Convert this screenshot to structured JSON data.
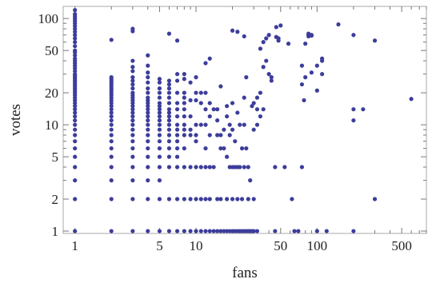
{
  "chart_data": {
    "type": "scatter",
    "xlabel": "fans",
    "ylabel": "votes",
    "xscale": "log",
    "yscale": "log",
    "xlim": [
      0.8,
      800
    ],
    "ylim": [
      0.95,
      130
    ],
    "xticks": [
      {
        "value": 1,
        "label": "1"
      },
      {
        "value": 5,
        "label": "5"
      },
      {
        "value": 10,
        "label": "10"
      },
      {
        "value": 50,
        "label": "50"
      },
      {
        "value": 100,
        "label": "100"
      },
      {
        "value": 500,
        "label": "500"
      }
    ],
    "yticks": [
      {
        "value": 1,
        "label": "1"
      },
      {
        "value": 2,
        "label": "2"
      },
      {
        "value": 5,
        "label": "5"
      },
      {
        "value": 10,
        "label": "10"
      },
      {
        "value": 20,
        "label": "20"
      },
      {
        "value": 50,
        "label": "50"
      },
      {
        "value": 100,
        "label": "100"
      }
    ],
    "marker_color": "#3d3d9b",
    "frame_color": "#aaaaaa",
    "points": [
      [
        1,
        1
      ],
      [
        1,
        2
      ],
      [
        1,
        3
      ],
      [
        1,
        4
      ],
      [
        1,
        5
      ],
      [
        1,
        6
      ],
      [
        1,
        7
      ],
      [
        1,
        8
      ],
      [
        1,
        9
      ],
      [
        1,
        10
      ],
      [
        1,
        11
      ],
      [
        1,
        12
      ],
      [
        1,
        13
      ],
      [
        1,
        14
      ],
      [
        1,
        15
      ],
      [
        1,
        16
      ],
      [
        1,
        17
      ],
      [
        1,
        18
      ],
      [
        1,
        19
      ],
      [
        1,
        20
      ],
      [
        1,
        21
      ],
      [
        1,
        22
      ],
      [
        1,
        23
      ],
      [
        1,
        24
      ],
      [
        1,
        25
      ],
      [
        1,
        26
      ],
      [
        1,
        27
      ],
      [
        1,
        28
      ],
      [
        1,
        29
      ],
      [
        1,
        30
      ],
      [
        1,
        32
      ],
      [
        1,
        34
      ],
      [
        1,
        36
      ],
      [
        1,
        38
      ],
      [
        1,
        40
      ],
      [
        1,
        42
      ],
      [
        1,
        45
      ],
      [
        1,
        48
      ],
      [
        1,
        50
      ],
      [
        1,
        55
      ],
      [
        1,
        60
      ],
      [
        1,
        65
      ],
      [
        1,
        70
      ],
      [
        1,
        75
      ],
      [
        1,
        80
      ],
      [
        1,
        85
      ],
      [
        1,
        90
      ],
      [
        1,
        95
      ],
      [
        1,
        100
      ],
      [
        1,
        105
      ],
      [
        1,
        110
      ],
      [
        1,
        120
      ],
      [
        2,
        1
      ],
      [
        2,
        2
      ],
      [
        2,
        3
      ],
      [
        2,
        4
      ],
      [
        2,
        5
      ],
      [
        2,
        6
      ],
      [
        2,
        7
      ],
      [
        2,
        8
      ],
      [
        2,
        9
      ],
      [
        2,
        10
      ],
      [
        2,
        11
      ],
      [
        2,
        12
      ],
      [
        2,
        13
      ],
      [
        2,
        14
      ],
      [
        2,
        15
      ],
      [
        2,
        16
      ],
      [
        2,
        17
      ],
      [
        2,
        18
      ],
      [
        2,
        19
      ],
      [
        2,
        20
      ],
      [
        2,
        21
      ],
      [
        2,
        22
      ],
      [
        2,
        23
      ],
      [
        2,
        24
      ],
      [
        2,
        25
      ],
      [
        2,
        26
      ],
      [
        2,
        27
      ],
      [
        2,
        28
      ],
      [
        2,
        63
      ],
      [
        3,
        1
      ],
      [
        3,
        2
      ],
      [
        3,
        3
      ],
      [
        3,
        4
      ],
      [
        3,
        5
      ],
      [
        3,
        6
      ],
      [
        3,
        7
      ],
      [
        3,
        8
      ],
      [
        3,
        9
      ],
      [
        3,
        10
      ],
      [
        3,
        11
      ],
      [
        3,
        12
      ],
      [
        3,
        13
      ],
      [
        3,
        14
      ],
      [
        3,
        15
      ],
      [
        3,
        16
      ],
      [
        3,
        17
      ],
      [
        3,
        18
      ],
      [
        3,
        19
      ],
      [
        3,
        20
      ],
      [
        3,
        22
      ],
      [
        3,
        24
      ],
      [
        3,
        26
      ],
      [
        3,
        28
      ],
      [
        3,
        32
      ],
      [
        3,
        35
      ],
      [
        3,
        40
      ],
      [
        3,
        76
      ],
      [
        3,
        80
      ],
      [
        4,
        1
      ],
      [
        4,
        2
      ],
      [
        4,
        3
      ],
      [
        4,
        4
      ],
      [
        4,
        5
      ],
      [
        4,
        6
      ],
      [
        4,
        7
      ],
      [
        4,
        8
      ],
      [
        4,
        9
      ],
      [
        4,
        10
      ],
      [
        4,
        11
      ],
      [
        4,
        12
      ],
      [
        4,
        13
      ],
      [
        4,
        14
      ],
      [
        4,
        15
      ],
      [
        4,
        16
      ],
      [
        4,
        17
      ],
      [
        4,
        18
      ],
      [
        4,
        20
      ],
      [
        4,
        22
      ],
      [
        4,
        25
      ],
      [
        4,
        28
      ],
      [
        4,
        31
      ],
      [
        4,
        36
      ],
      [
        4,
        45
      ],
      [
        5,
        1
      ],
      [
        5,
        2
      ],
      [
        5,
        3
      ],
      [
        5,
        4
      ],
      [
        5,
        5
      ],
      [
        5,
        6
      ],
      [
        5,
        7
      ],
      [
        5,
        8
      ],
      [
        5,
        9
      ],
      [
        5,
        10
      ],
      [
        5,
        11
      ],
      [
        5,
        12
      ],
      [
        5,
        13
      ],
      [
        5,
        14
      ],
      [
        5,
        15
      ],
      [
        5,
        16
      ],
      [
        5,
        18
      ],
      [
        5,
        20
      ],
      [
        5,
        22
      ],
      [
        5,
        25
      ],
      [
        5,
        27
      ],
      [
        6,
        1
      ],
      [
        6,
        2
      ],
      [
        6,
        4
      ],
      [
        6,
        5
      ],
      [
        6,
        6
      ],
      [
        6,
        7
      ],
      [
        6,
        8
      ],
      [
        6,
        9
      ],
      [
        6,
        10
      ],
      [
        6,
        11
      ],
      [
        6,
        12
      ],
      [
        6,
        13
      ],
      [
        6,
        14
      ],
      [
        6,
        16
      ],
      [
        6,
        18
      ],
      [
        6,
        20
      ],
      [
        6,
        22
      ],
      [
        6,
        24
      ],
      [
        6,
        26
      ],
      [
        6,
        72
      ],
      [
        7,
        1
      ],
      [
        7,
        2
      ],
      [
        7,
        4
      ],
      [
        7,
        5
      ],
      [
        7,
        6
      ],
      [
        7,
        7
      ],
      [
        7,
        8
      ],
      [
        7,
        9
      ],
      [
        7,
        10
      ],
      [
        7,
        12
      ],
      [
        7,
        14
      ],
      [
        7,
        16
      ],
      [
        7,
        20
      ],
      [
        7,
        26
      ],
      [
        7,
        30
      ],
      [
        7,
        62
      ],
      [
        8,
        1
      ],
      [
        8,
        2
      ],
      [
        8,
        4
      ],
      [
        8,
        6
      ],
      [
        8,
        8
      ],
      [
        8,
        9
      ],
      [
        8,
        10
      ],
      [
        8,
        12
      ],
      [
        8,
        14
      ],
      [
        8,
        16
      ],
      [
        8,
        18
      ],
      [
        8,
        20
      ],
      [
        8,
        27
      ],
      [
        8,
        30
      ],
      [
        9,
        1
      ],
      [
        9,
        2
      ],
      [
        9,
        4
      ],
      [
        9,
        8
      ],
      [
        9,
        9
      ],
      [
        9,
        12
      ],
      [
        9,
        17
      ],
      [
        9,
        25
      ],
      [
        10,
        1
      ],
      [
        10,
        2
      ],
      [
        10,
        4
      ],
      [
        10,
        7
      ],
      [
        10,
        8
      ],
      [
        10,
        10
      ],
      [
        10,
        17
      ],
      [
        10,
        20
      ],
      [
        10,
        28
      ],
      [
        11,
        1
      ],
      [
        11,
        2
      ],
      [
        11,
        4
      ],
      [
        11,
        10
      ],
      [
        11,
        16
      ],
      [
        11,
        20
      ],
      [
        12,
        1
      ],
      [
        12,
        2
      ],
      [
        12,
        4
      ],
      [
        12,
        6
      ],
      [
        12,
        10
      ],
      [
        12,
        14
      ],
      [
        12,
        20
      ],
      [
        12,
        38
      ],
      [
        13,
        1
      ],
      [
        13,
        2
      ],
      [
        13,
        4
      ],
      [
        13,
        8
      ],
      [
        13,
        12
      ],
      [
        13,
        16
      ],
      [
        13,
        42
      ],
      [
        14,
        1
      ],
      [
        14,
        4
      ],
      [
        14,
        14
      ],
      [
        15,
        1
      ],
      [
        15,
        2
      ],
      [
        15,
        8
      ],
      [
        15,
        11
      ],
      [
        15,
        14
      ],
      [
        16,
        1
      ],
      [
        16,
        2
      ],
      [
        16,
        6
      ],
      [
        16,
        8
      ],
      [
        16,
        23
      ],
      [
        17,
        1
      ],
      [
        17,
        6
      ],
      [
        17,
        9
      ],
      [
        18,
        1
      ],
      [
        18,
        2
      ],
      [
        18,
        5
      ],
      [
        18,
        12
      ],
      [
        18,
        15
      ],
      [
        19,
        1
      ],
      [
        19,
        4
      ],
      [
        19,
        8
      ],
      [
        19,
        10
      ],
      [
        20,
        1
      ],
      [
        20,
        2
      ],
      [
        20,
        4
      ],
      [
        20,
        9
      ],
      [
        20,
        16
      ],
      [
        20,
        77
      ],
      [
        21,
        1
      ],
      [
        21,
        4
      ],
      [
        21,
        7
      ],
      [
        22,
        1
      ],
      [
        22,
        2
      ],
      [
        22,
        4
      ],
      [
        22,
        13
      ],
      [
        22,
        75
      ],
      [
        23,
        1
      ],
      [
        23,
        4
      ],
      [
        23,
        10
      ],
      [
        24,
        1
      ],
      [
        24,
        2
      ],
      [
        24,
        6
      ],
      [
        25,
        1
      ],
      [
        25,
        4
      ],
      [
        25,
        10
      ],
      [
        25,
        18
      ],
      [
        25,
        68
      ],
      [
        26,
        1
      ],
      [
        26,
        6
      ],
      [
        26,
        28
      ],
      [
        27,
        1
      ],
      [
        27,
        2
      ],
      [
        27,
        4
      ],
      [
        28,
        1
      ],
      [
        28,
        3
      ],
      [
        29,
        1
      ],
      [
        29,
        15
      ],
      [
        30,
        1
      ],
      [
        30,
        2
      ],
      [
        30,
        9
      ],
      [
        30,
        16
      ],
      [
        32,
        1
      ],
      [
        32,
        10
      ],
      [
        32,
        14
      ],
      [
        32,
        18
      ],
      [
        34,
        12
      ],
      [
        34,
        20
      ],
      [
        34,
        52
      ],
      [
        36,
        14
      ],
      [
        36,
        35
      ],
      [
        36,
        60
      ],
      [
        38,
        40
      ],
      [
        38,
        65
      ],
      [
        40,
        70
      ],
      [
        40,
        30
      ],
      [
        42,
        26
      ],
      [
        42,
        28
      ],
      [
        45,
        1
      ],
      [
        45,
        4
      ],
      [
        46,
        67
      ],
      [
        46,
        83
      ],
      [
        48,
        62
      ],
      [
        48,
        65
      ],
      [
        50,
        86
      ],
      [
        54,
        4
      ],
      [
        58,
        58
      ],
      [
        62,
        2
      ],
      [
        65,
        1
      ],
      [
        70,
        1
      ],
      [
        75,
        4
      ],
      [
        75,
        24
      ],
      [
        75,
        36
      ],
      [
        78,
        17
      ],
      [
        80,
        28
      ],
      [
        80,
        58
      ],
      [
        85,
        68
      ],
      [
        85,
        72
      ],
      [
        85,
        70
      ],
      [
        90,
        69
      ],
      [
        90,
        70
      ],
      [
        90,
        31
      ],
      [
        100,
        1
      ],
      [
        100,
        21
      ],
      [
        100,
        36
      ],
      [
        110,
        30
      ],
      [
        110,
        40
      ],
      [
        110,
        42
      ],
      [
        120,
        1
      ],
      [
        150,
        88
      ],
      [
        200,
        1
      ],
      [
        200,
        11
      ],
      [
        200,
        14
      ],
      [
        200,
        70
      ],
      [
        240,
        14
      ],
      [
        300,
        2
      ],
      [
        300,
        62
      ],
      [
        600,
        17.5
      ]
    ]
  }
}
